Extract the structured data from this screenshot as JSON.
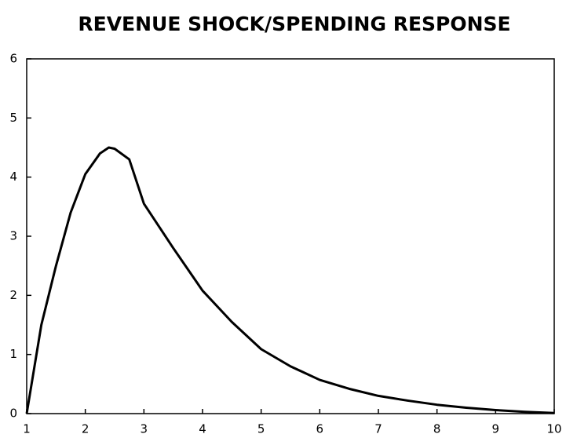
{
  "chart_data": {
    "type": "line",
    "title": "REVENUE SHOCK/SPENDING RESPONSE",
    "x": [
      1,
      1.25,
      1.5,
      1.75,
      2,
      2.25,
      2.4,
      2.5,
      2.75,
      3,
      3.5,
      4,
      4.5,
      5,
      5.5,
      6,
      6.5,
      7,
      7.5,
      8,
      8.5,
      9,
      9.5,
      10
    ],
    "series": [
      {
        "name": "Spending response",
        "color": "#000000",
        "values": [
          0,
          1.5,
          2.5,
          3.4,
          4.05,
          4.4,
          4.5,
          4.48,
          4.3,
          3.55,
          2.8,
          2.08,
          1.55,
          1.09,
          0.8,
          0.57,
          0.42,
          0.3,
          0.22,
          0.15,
          0.1,
          0.06,
          0.03,
          0.01
        ]
      }
    ],
    "xlim": [
      1,
      10
    ],
    "xticks": [
      1,
      2,
      3,
      4,
      5,
      6,
      7,
      8,
      9,
      10
    ],
    "ylim": [
      0,
      6
    ],
    "yticks": [
      0,
      1,
      2,
      3,
      4,
      5,
      6
    ],
    "grid": false
  }
}
